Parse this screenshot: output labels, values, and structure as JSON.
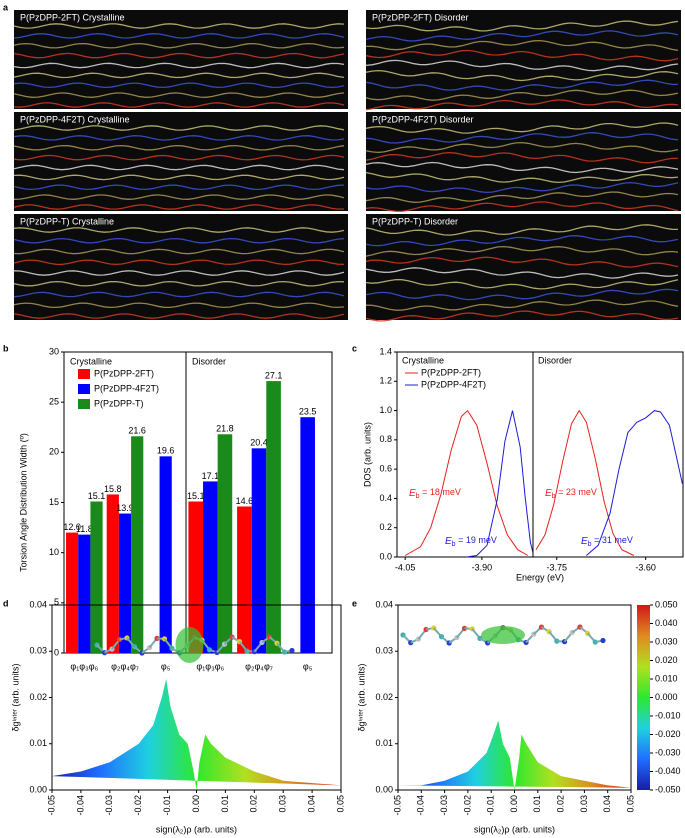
{
  "panel_labels": [
    "a",
    "b",
    "c",
    "d",
    "e"
  ],
  "images": [
    "P(PzDPP-2FT) Crystalline",
    "P(PzDPP-2FT) Disorder",
    "P(PzDPP-4F2T) Crystalline",
    "P(PzDPP-4F2T) Disorder",
    "P(PzDPP-T) Crystalline",
    "P(PzDPP-T) Disorder"
  ],
  "chart_data": [
    {
      "type": "bar",
      "ylabel": "Torsion Angle Distribution Width (º)",
      "sections": [
        "Crystalline",
        "Disorder"
      ],
      "categories": [
        "φ₁φ₃φ₆",
        "φ₂φ₄φ₇",
        "φ₅",
        "φ₁φ₃φ₆",
        "φ₂φ₄φ₇",
        "φ₅"
      ],
      "series": [
        {
          "name": "P(PzDPP-2FT)",
          "color": "#ff0000",
          "values": [
            12.0,
            15.8,
            null,
            15.1,
            14.6,
            null
          ],
          "value_labels": [
            "12.0",
            "15.8",
            null,
            "15.1",
            "14.6",
            null
          ]
        },
        {
          "name": "P(PzDPP-4F2T)",
          "color": "#0000ff",
          "values": [
            11.8,
            13.9,
            19.6,
            17.1,
            20.4,
            23.5
          ]
        },
        {
          "name": "P(PzDPP-T)",
          "color": "#1a8a1a",
          "values": [
            15.1,
            21.6,
            null,
            21.8,
            27.1,
            null
          ]
        }
      ],
      "ylim": [
        0,
        30
      ],
      "yticks": [
        0,
        5,
        10,
        15,
        20,
        25,
        30
      ]
    },
    {
      "type": "line",
      "ylabel": "DOS (arb. units)",
      "xlabel": "Energy (eV)",
      "ylim": [
        0,
        1.4
      ],
      "yticks": [
        {
          "value": 0,
          "label": "0.0"
        },
        0.2,
        0.4,
        0.6,
        0.8,
        {
          "value": 1,
          "label": "1.0"
        },
        1.2,
        1.4
      ],
      "panels": [
        {
          "title": "Crystalline",
          "xlim": [
            -4.066,
            -3.8
          ],
          "xticks": [
            -4.05,
            {
              "value": -3.9,
              "label": "-3.90"
            }
          ],
          "series": [
            {
              "name": "P(PzDPP-2FT)",
              "color": "#e8201c",
              "x": [
                -4.05,
                -4.02,
                -4.0,
                -3.98,
                -3.96,
                -3.94,
                -3.928,
                -3.91,
                -3.89,
                -3.87,
                -3.85,
                -3.83,
                -3.81
              ],
              "values": [
                0.01,
                0.07,
                0.2,
                0.43,
                0.73,
                0.96,
                1.0,
                0.9,
                0.64,
                0.35,
                0.15,
                0.05,
                0.01
              ]
            },
            {
              "name": "P(PzDPP-4F2T)",
              "color": "#1c1cd8",
              "x": [
                -3.93,
                -3.91,
                -3.89,
                -3.87,
                -3.855,
                -3.84,
                -3.825,
                -3.815,
                -3.805,
                -3.8
              ],
              "values": [
                0.0,
                0.01,
                0.08,
                0.39,
                0.79,
                1.0,
                0.75,
                0.4,
                0.1,
                0.03
              ]
            }
          ],
          "annotations": [
            {
              "symbol": "E",
              "subscript": "b",
              "text": " = 18 meV",
              "color": "#e8201c"
            },
            {
              "symbol": "E",
              "subscript": "b",
              "text": " = 19 meV",
              "color": "#1c1cd8"
            }
          ]
        },
        {
          "title": "Disorder",
          "xlim": [
            -3.79,
            -3.537
          ],
          "xticks": [
            -3.75,
            {
              "value": -3.6,
              "label": "-3.60"
            }
          ],
          "series": [
            {
              "color": "#e8201c",
              "x": [
                -3.785,
                -3.77,
                -3.755,
                -3.74,
                -3.725,
                -3.712,
                -3.7,
                -3.685,
                -3.67,
                -3.655,
                -3.64,
                -3.62
              ],
              "values": [
                0.05,
                0.15,
                0.36,
                0.65,
                0.91,
                1.0,
                0.92,
                0.67,
                0.38,
                0.16,
                0.05,
                0.01
              ]
            },
            {
              "color": "#1c1cd8",
              "x": [
                -3.7,
                -3.68,
                -3.66,
                -3.645,
                -3.63,
                -3.615,
                -3.6,
                -3.585,
                -3.575,
                -3.56,
                -3.55,
                -3.538
              ],
              "values": [
                0.01,
                0.08,
                0.3,
                0.6,
                0.85,
                0.92,
                0.95,
                1.0,
                0.99,
                0.9,
                0.72,
                0.5
              ]
            }
          ],
          "annotations": [
            {
              "symbol": "E",
              "subscript": "b",
              "text": " = 23 meV",
              "color": "#e8201c"
            },
            {
              "symbol": "E",
              "subscript": "b",
              "text": " = 31 meV",
              "color": "#1c1cd8"
            }
          ]
        }
      ]
    },
    {
      "type": "area",
      "xlabel": "sign(λ₂)ρ (arb. units)",
      "ylabel": "δgⁱⁿᵗᵉʳ (arb. units)",
      "xlim": [
        -0.05,
        0.05
      ],
      "xticks": [
        -0.05,
        -0.04,
        -0.03,
        -0.02,
        -0.01,
        {
          "value": 0,
          "label": "0.00"
        },
        0.01,
        0.02,
        0.03,
        0.04,
        0.05
      ],
      "ylim": [
        0,
        0.04
      ],
      "yticks": [
        {
          "value": 0,
          "label": "0.00"
        },
        0.01,
        0.02,
        0.03,
        0.04
      ],
      "x": [
        -0.05,
        -0.04,
        -0.03,
        -0.02,
        -0.015,
        -0.012,
        -0.0105,
        -0.009,
        -0.006,
        -0.003,
        -0.001,
        0,
        0.001,
        0.003,
        0.005,
        0.01,
        0.02,
        0.03,
        0.04,
        0.05
      ],
      "values": [
        0.003,
        0.004,
        0.006,
        0.01,
        0.014,
        0.02,
        0.024,
        0.018,
        0.012,
        0.01,
        0.004,
        0,
        0.006,
        0.012,
        0.01,
        0.007,
        0.004,
        0.002,
        0.0015,
        0.001
      ],
      "colormap": [
        "#1a1aa8",
        "#1f6fff",
        "#1fd0e0",
        "#2ee82e",
        "#b0e020",
        "#e08a20",
        "#d01818"
      ]
    },
    {
      "type": "area",
      "xlabel": "sign(λ₂)ρ (arb. units)",
      "ylabel": "δgⁱⁿᵗᵉʳ (arb. units)",
      "xlim": [
        -0.05,
        0.05
      ],
      "xticks": [
        -0.05,
        -0.04,
        -0.03,
        -0.02,
        -0.01,
        {
          "value": 0,
          "label": "0.00"
        },
        0.01,
        0.02,
        0.03,
        0.04,
        0.05
      ],
      "ylim": [
        0,
        0.04
      ],
      "yticks": [
        {
          "value": 0,
          "label": "0.00"
        },
        0.01,
        0.02,
        0.03,
        0.04
      ],
      "x": [
        -0.05,
        -0.04,
        -0.03,
        -0.02,
        -0.012,
        -0.009,
        -0.007,
        -0.005,
        -0.002,
        0,
        0.002,
        0.003,
        0.005,
        0.01,
        0.02,
        0.03,
        0.04,
        0.05
      ],
      "values": [
        0.001,
        0.001,
        0.002,
        0.004,
        0.008,
        0.012,
        0.015,
        0.01,
        0.007,
        0,
        0.007,
        0.012,
        0.01,
        0.006,
        0.003,
        0.002,
        0.001,
        0.0005
      ],
      "colormap": [
        "#1a1aa8",
        "#1f6fff",
        "#1fd0e0",
        "#2ee82e",
        "#b0e020",
        "#e08a20",
        "#d01818"
      ],
      "clim": [
        -0.05,
        0.05
      ],
      "colorbar_ticks": [
        {
          "value": 0.05,
          "label": "0.050"
        },
        {
          "value": 0.04,
          "label": "0.040"
        },
        {
          "value": 0.03,
          "label": "0.030"
        },
        {
          "value": 0.02,
          "label": "0.020"
        },
        {
          "value": 0.01,
          "label": "0.010"
        },
        {
          "value": 0,
          "label": "0.000"
        },
        {
          "value": -0.01,
          "label": "-0.010"
        },
        {
          "value": -0.02,
          "label": "-0.020"
        },
        {
          "value": -0.03,
          "label": "-0.030"
        },
        {
          "value": -0.04,
          "label": "-0.040"
        },
        {
          "value": -0.05,
          "label": "-0.050"
        }
      ]
    }
  ]
}
